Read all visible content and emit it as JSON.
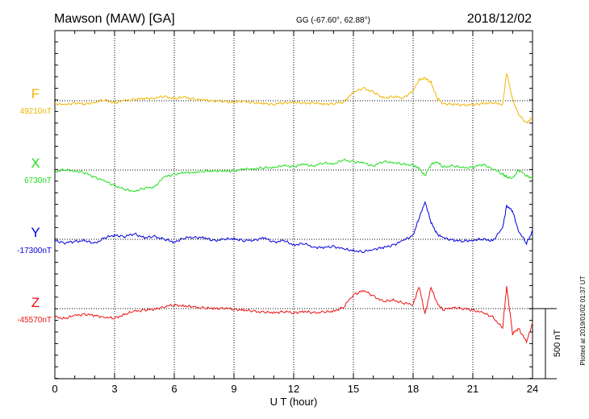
{
  "header": {
    "station": "Mawson (MAW)  [GA]",
    "coords": "GG (-67.60°,  62.88°)",
    "date": "2018/12/02"
  },
  "footer_note": "Plotted at 2019/01/02 01:37 UT",
  "scale_label": "500 nT",
  "chart_data": {
    "type": "line",
    "xlabel": "U T (hour)",
    "xlim": [
      0,
      24
    ],
    "xticks": [
      0,
      3,
      6,
      9,
      12,
      15,
      18,
      21,
      24
    ],
    "xtick_labels": [
      "0",
      "3",
      "6",
      "9",
      "12",
      "15",
      "18",
      "21",
      "24"
    ],
    "grid": true,
    "series": [
      {
        "name": "F",
        "baseline_label": "49210nT",
        "color": "#f0b400",
        "points": [
          [
            0,
            -20
          ],
          [
            0.5,
            -30
          ],
          [
            1,
            -15
          ],
          [
            1.5,
            -25
          ],
          [
            2,
            -10
          ],
          [
            2.5,
            5
          ],
          [
            3,
            -15
          ],
          [
            3.5,
            0
          ],
          [
            4,
            10
          ],
          [
            4.5,
            15
          ],
          [
            5,
            20
          ],
          [
            5.5,
            30
          ],
          [
            6,
            15
          ],
          [
            6.5,
            25
          ],
          [
            7,
            10
          ],
          [
            7.5,
            5
          ],
          [
            8,
            0
          ],
          [
            8.5,
            -5
          ],
          [
            9,
            -10
          ],
          [
            9.5,
            -5
          ],
          [
            10,
            -15
          ],
          [
            10.5,
            -20
          ],
          [
            11,
            -25
          ],
          [
            11.5,
            -15
          ],
          [
            12,
            -10
          ],
          [
            12.5,
            -20
          ],
          [
            13,
            -15
          ],
          [
            13.5,
            -25
          ],
          [
            14,
            -20
          ],
          [
            14.5,
            -10
          ],
          [
            15,
            60
          ],
          [
            15.5,
            90
          ],
          [
            16,
            60
          ],
          [
            16.5,
            20
          ],
          [
            17,
            30
          ],
          [
            17.5,
            20
          ],
          [
            18,
            70
          ],
          [
            18.3,
            150
          ],
          [
            18.6,
            160
          ],
          [
            18.9,
            130
          ],
          [
            19.2,
            20
          ],
          [
            19.5,
            -20
          ],
          [
            20,
            -25
          ],
          [
            20.5,
            -30
          ],
          [
            21,
            -30
          ],
          [
            21.5,
            -20
          ],
          [
            22,
            -15
          ],
          [
            22.5,
            -25
          ],
          [
            22.7,
            200
          ],
          [
            23,
            10
          ],
          [
            23.3,
            -100
          ],
          [
            23.7,
            -160
          ],
          [
            24,
            -120
          ]
        ]
      },
      {
        "name": "X",
        "baseline_label": "6730nT",
        "color": "#22dd22",
        "points": [
          [
            0,
            -10
          ],
          [
            0.5,
            0
          ],
          [
            1,
            -5
          ],
          [
            1.5,
            -20
          ],
          [
            2,
            -50
          ],
          [
            2.5,
            -80
          ],
          [
            3,
            -110
          ],
          [
            3.5,
            -140
          ],
          [
            4,
            -150
          ],
          [
            4.5,
            -130
          ],
          [
            5,
            -120
          ],
          [
            5.5,
            -50
          ],
          [
            6,
            -30
          ],
          [
            6.5,
            -20
          ],
          [
            7,
            -15
          ],
          [
            7.5,
            -10
          ],
          [
            8,
            -5
          ],
          [
            8.5,
            -10
          ],
          [
            9,
            -5
          ],
          [
            9.5,
            5
          ],
          [
            10,
            10
          ],
          [
            10.5,
            15
          ],
          [
            11,
            20
          ],
          [
            11.5,
            30
          ],
          [
            12,
            25
          ],
          [
            12.5,
            40
          ],
          [
            13,
            30
          ],
          [
            13.5,
            50
          ],
          [
            14,
            45
          ],
          [
            14.5,
            70
          ],
          [
            15,
            60
          ],
          [
            15.5,
            50
          ],
          [
            16,
            30
          ],
          [
            16.5,
            60
          ],
          [
            17,
            55
          ],
          [
            17.5,
            40
          ],
          [
            18,
            35
          ],
          [
            18.3,
            10
          ],
          [
            18.6,
            -40
          ],
          [
            18.9,
            40
          ],
          [
            19.2,
            60
          ],
          [
            19.5,
            20
          ],
          [
            20,
            30
          ],
          [
            20.5,
            15
          ],
          [
            21,
            20
          ],
          [
            21.5,
            40
          ],
          [
            22,
            10
          ],
          [
            22.5,
            -30
          ],
          [
            22.7,
            -50
          ],
          [
            23,
            -60
          ],
          [
            23.3,
            0
          ],
          [
            23.7,
            -40
          ],
          [
            24,
            -60
          ]
        ]
      },
      {
        "name": "Y",
        "baseline_label": "-17300nT",
        "color": "#0000dd",
        "points": [
          [
            0,
            -10
          ],
          [
            0.5,
            -25
          ],
          [
            1,
            -15
          ],
          [
            1.5,
            -10
          ],
          [
            2,
            -30
          ],
          [
            2.5,
            10
          ],
          [
            3,
            30
          ],
          [
            3.5,
            20
          ],
          [
            4,
            40
          ],
          [
            4.5,
            10
          ],
          [
            5,
            20
          ],
          [
            5.5,
            0
          ],
          [
            6,
            -20
          ],
          [
            6.5,
            10
          ],
          [
            7,
            15
          ],
          [
            7.5,
            10
          ],
          [
            8,
            -10
          ],
          [
            8.5,
            0
          ],
          [
            9,
            5
          ],
          [
            9.5,
            -10
          ],
          [
            10,
            -5
          ],
          [
            10.5,
            10
          ],
          [
            11,
            -20
          ],
          [
            11.5,
            -10
          ],
          [
            12,
            -40
          ],
          [
            12.5,
            -30
          ],
          [
            13,
            -55
          ],
          [
            13.5,
            -60
          ],
          [
            14,
            -50
          ],
          [
            14.5,
            -70
          ],
          [
            15,
            -80
          ],
          [
            15.5,
            -90
          ],
          [
            16,
            -70
          ],
          [
            16.5,
            -60
          ],
          [
            17,
            -40
          ],
          [
            17.5,
            -10
          ],
          [
            18,
            30
          ],
          [
            18.3,
            150
          ],
          [
            18.6,
            270
          ],
          [
            18.9,
            120
          ],
          [
            19.2,
            40
          ],
          [
            19.5,
            10
          ],
          [
            20,
            -5
          ],
          [
            20.5,
            -15
          ],
          [
            21,
            -5
          ],
          [
            21.5,
            0
          ],
          [
            22,
            -10
          ],
          [
            22.5,
            80
          ],
          [
            22.7,
            240
          ],
          [
            23,
            200
          ],
          [
            23.3,
            60
          ],
          [
            23.7,
            -30
          ],
          [
            24,
            60
          ]
        ]
      },
      {
        "name": "Z",
        "baseline_label": "-45570nT",
        "color": "#ee1111",
        "points": [
          [
            0,
            -60
          ],
          [
            0.5,
            -70
          ],
          [
            1,
            -50
          ],
          [
            1.5,
            -40
          ],
          [
            2,
            -50
          ],
          [
            2.5,
            -60
          ],
          [
            3,
            -70
          ],
          [
            3.5,
            -40
          ],
          [
            4,
            -20
          ],
          [
            4.5,
            -10
          ],
          [
            5,
            -5
          ],
          [
            5.5,
            15
          ],
          [
            6,
            25
          ],
          [
            6.5,
            20
          ],
          [
            7,
            10
          ],
          [
            7.5,
            5
          ],
          [
            8,
            0
          ],
          [
            8.5,
            5
          ],
          [
            9,
            -5
          ],
          [
            9.5,
            -10
          ],
          [
            10,
            -20
          ],
          [
            10.5,
            -25
          ],
          [
            11,
            -30
          ],
          [
            11.5,
            -20
          ],
          [
            12,
            -30
          ],
          [
            12.5,
            -20
          ],
          [
            13,
            -30
          ],
          [
            13.5,
            -25
          ],
          [
            14,
            -20
          ],
          [
            14.5,
            10
          ],
          [
            15,
            100
          ],
          [
            15.5,
            130
          ],
          [
            16,
            90
          ],
          [
            16.5,
            50
          ],
          [
            17,
            60
          ],
          [
            17.5,
            40
          ],
          [
            18,
            30
          ],
          [
            18.3,
            160
          ],
          [
            18.6,
            -40
          ],
          [
            18.9,
            150
          ],
          [
            19.2,
            40
          ],
          [
            19.5,
            -10
          ],
          [
            20,
            10
          ],
          [
            20.5,
            0
          ],
          [
            21,
            -10
          ],
          [
            21.5,
            -30
          ],
          [
            22,
            -60
          ],
          [
            22.5,
            -140
          ],
          [
            22.7,
            160
          ],
          [
            23,
            -180
          ],
          [
            23.3,
            -140
          ],
          [
            23.7,
            -240
          ],
          [
            24,
            -100
          ]
        ]
      }
    ]
  }
}
